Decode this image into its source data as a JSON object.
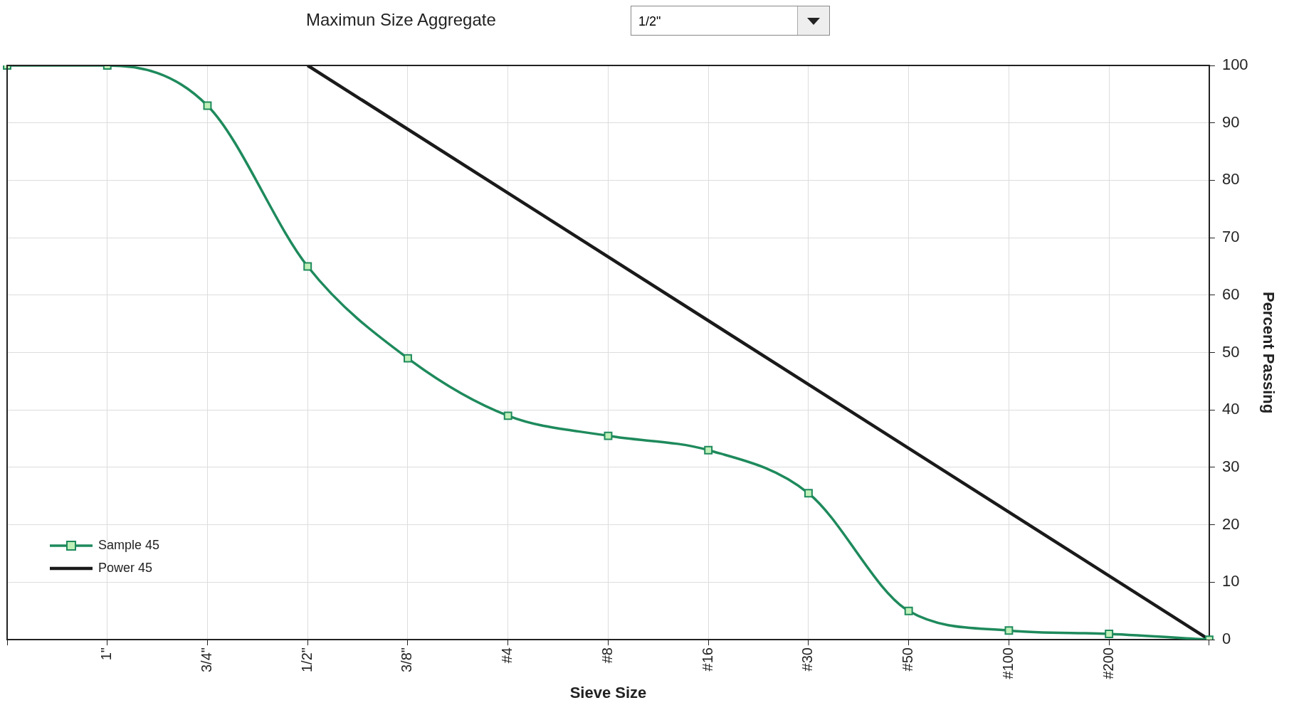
{
  "chart_data": {
    "type": "line",
    "title": "Maximun Size Aggregate",
    "annotations": [
      "1/2\""
    ],
    "xlabel": "Sieve Size",
    "ylabel": "Percent Passing",
    "categories": [
      null,
      "1\"",
      "3/4\"",
      "1/2\"",
      "3/8\"",
      "#4",
      "#8",
      "#16",
      "#30",
      "#50",
      "#100",
      "#200",
      null
    ],
    "ylim": [
      0,
      100
    ],
    "yticks": [
      0,
      10,
      20,
      30,
      40,
      50,
      60,
      70,
      80,
      90,
      100
    ],
    "grid": true,
    "legend": "bottom left",
    "series": [
      {
        "name": "Sample 45",
        "color": "#1e8a5c",
        "marker": "square",
        "values": [
          100,
          100,
          93,
          65,
          49,
          39,
          35.5,
          33,
          25.5,
          5,
          1.6,
          1,
          0
        ]
      },
      {
        "name": "Power 45",
        "color": "#1a1a1a",
        "marker": "none",
        "values": [
          null,
          null,
          null,
          100,
          null,
          null,
          null,
          null,
          null,
          null,
          null,
          null,
          0
        ]
      }
    ]
  }
}
